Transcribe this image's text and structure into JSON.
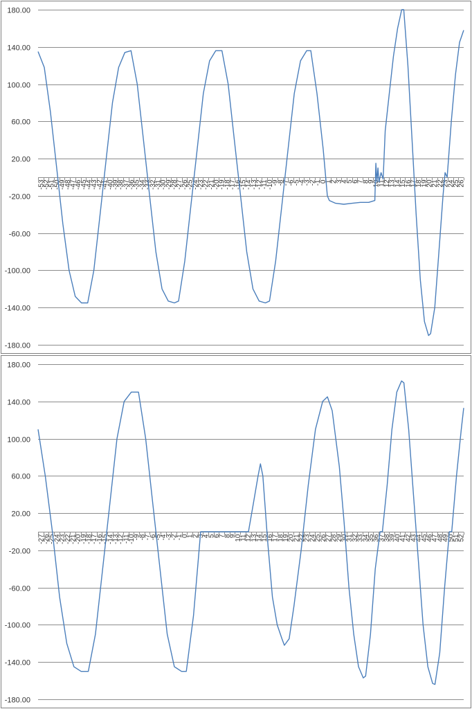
{
  "colors": {
    "series": "#4a7ebb",
    "grid": "#8c8c8c",
    "background": "#ffffff"
  },
  "chart_data": [
    {
      "type": "line",
      "title": "",
      "xlabel": "",
      "ylabel": "",
      "ylim": [
        -180,
        180
      ],
      "yticks": [
        "180.00",
        "140.00",
        "100.00",
        "60.00",
        "20.00",
        "-20.00",
        "-60.00",
        "-100.00",
        "-140.00",
        "-180.00"
      ],
      "grid": true,
      "legend": "none",
      "x_tick_labels": [
        "-53",
        "-52",
        "-51",
        "-50",
        "-49",
        "-48",
        "-47",
        "-46",
        "-45",
        "-44",
        "-43",
        "-42",
        "-41",
        "-40",
        "-39",
        "-38",
        "-37",
        "-36",
        "-35",
        "-34",
        "-33",
        "-32",
        "-31",
        "-30",
        "-29",
        "-28",
        "-27",
        "-26",
        "-25",
        "-24",
        "-23",
        "-22",
        "-21",
        "-20",
        "-19",
        "-18",
        "-17",
        "-16",
        "-15",
        "-14",
        "-13",
        "-12",
        "-11",
        "-10",
        "-9",
        "-8",
        "-7",
        "-6",
        "-5",
        "-4",
        "-3",
        "-2",
        "-1",
        "0",
        "1",
        "2",
        "3",
        "4",
        "5",
        "6",
        "7",
        "8",
        "9",
        "10",
        "11",
        "12",
        "13",
        "14",
        "15",
        "16",
        "17",
        "18",
        "19",
        "20",
        "21",
        "22",
        "23",
        "24",
        "25",
        "26"
      ],
      "series": [
        {
          "values": [
            [
              0,
              135
            ],
            [
              3,
              118
            ],
            [
              6,
              70
            ],
            [
              9,
              10
            ],
            [
              12,
              -50
            ],
            [
              15,
              -100
            ],
            [
              18,
              -128
            ],
            [
              21,
              -135
            ],
            [
              24,
              -135
            ],
            [
              27,
              -100
            ],
            [
              30,
              -40
            ],
            [
              33,
              20
            ],
            [
              36,
              80
            ],
            [
              39,
              118
            ],
            [
              42,
              134
            ],
            [
              45,
              136
            ],
            [
              48,
              100
            ],
            [
              51,
              40
            ],
            [
              54,
              -20
            ],
            [
              57,
              -80
            ],
            [
              60,
              -120
            ],
            [
              63,
              -133
            ],
            [
              66,
              -135
            ],
            [
              68,
              -133
            ],
            [
              71,
              -90
            ],
            [
              74,
              -30
            ],
            [
              77,
              30
            ],
            [
              80,
              90
            ],
            [
              83,
              125
            ],
            [
              86,
              136
            ],
            [
              89,
              136
            ],
            [
              92,
              100
            ],
            [
              95,
              40
            ],
            [
              98,
              -20
            ],
            [
              101,
              -80
            ],
            [
              104,
              -120
            ],
            [
              107,
              -133
            ],
            [
              110,
              -135
            ],
            [
              112,
              -133
            ],
            [
              115,
              -90
            ],
            [
              118,
              -30
            ],
            [
              121,
              30
            ],
            [
              124,
              90
            ],
            [
              127,
              125
            ],
            [
              130,
              136
            ],
            [
              132,
              136
            ],
            [
              135,
              90
            ],
            [
              138,
              30
            ],
            [
              140,
              -20
            ],
            [
              141,
              -25
            ],
            [
              144,
              -28
            ],
            [
              148,
              -29
            ],
            [
              152,
              -28
            ],
            [
              156,
              -27
            ],
            [
              160,
              -27
            ],
            [
              163,
              -25
            ],
            [
              163.5,
              15
            ],
            [
              164,
              -5
            ],
            [
              164.5,
              10
            ],
            [
              165,
              -5
            ],
            [
              166,
              5
            ],
            [
              167,
              -2
            ],
            [
              168,
              50
            ],
            [
              170,
              90
            ],
            [
              172,
              130
            ],
            [
              174,
              160
            ],
            [
              176,
              180
            ],
            [
              177,
              180
            ],
            [
              179,
              120
            ],
            [
              181,
              40
            ],
            [
              183,
              -40
            ],
            [
              185,
              -110
            ],
            [
              187,
              -155
            ],
            [
              189,
              -170
            ],
            [
              190,
              -168
            ],
            [
              192,
              -140
            ],
            [
              194,
              -80
            ],
            [
              196,
              -20
            ],
            [
              197,
              5
            ],
            [
              198,
              0
            ],
            [
              200,
              60
            ],
            [
              202,
              110
            ],
            [
              204,
              145
            ],
            [
              206,
              158
            ]
          ]
        }
      ]
    },
    {
      "type": "line",
      "title": "",
      "xlabel": "",
      "ylabel": "",
      "ylim": [
        -180,
        180
      ],
      "yticks": [
        "180.00",
        "140.00",
        "100.00",
        "60.00",
        "20.00",
        "-20.00",
        "-60.00",
        "-100.00",
        "-140.00",
        "-180.00"
      ],
      "grid": true,
      "legend": "none",
      "x_tick_labels": [
        "-27",
        "-26",
        "-25",
        "-24",
        "-23",
        "-22",
        "-21",
        "-20",
        "-19",
        "-18",
        "-17",
        "-16",
        "-15",
        "-14",
        "-13",
        "-12",
        "-11",
        "-10",
        "-9",
        "-8",
        "-7",
        "-6",
        "-5",
        "-4",
        "-3",
        "-2",
        "-1",
        "0",
        "1",
        "2",
        "3",
        "4",
        "5",
        "6",
        "7",
        "8",
        "9",
        "10",
        "11",
        "12",
        "13",
        "14",
        "15",
        "16",
        "17",
        "18",
        "19",
        "20",
        "21",
        "22",
        "23",
        "24",
        "25",
        "26",
        "27",
        "28",
        "29",
        "30",
        "31",
        "32",
        "33",
        "34",
        "35",
        "36",
        "37",
        "38",
        "39",
        "40",
        "41",
        "42",
        "43",
        "44",
        "45",
        "46",
        "47",
        "48",
        "49",
        "50",
        "51",
        "52"
      ],
      "series": [
        {
          "values": [
            [
              0,
              110
            ],
            [
              3,
              60
            ],
            [
              6,
              0
            ],
            [
              9,
              -70
            ],
            [
              12,
              -120
            ],
            [
              15,
              -145
            ],
            [
              18,
              -150
            ],
            [
              21,
              -150
            ],
            [
              24,
              -110
            ],
            [
              27,
              -40
            ],
            [
              30,
              30
            ],
            [
              33,
              100
            ],
            [
              36,
              140
            ],
            [
              39,
              150
            ],
            [
              42,
              150
            ],
            [
              45,
              100
            ],
            [
              48,
              30
            ],
            [
              51,
              -40
            ],
            [
              54,
              -110
            ],
            [
              57,
              -145
            ],
            [
              60,
              -150
            ],
            [
              62,
              -150
            ],
            [
              65,
              -90
            ],
            [
              67,
              -30
            ],
            [
              68,
              0
            ],
            [
              70,
              0
            ],
            [
              75,
              0
            ],
            [
              80,
              0
            ],
            [
              85,
              0
            ],
            [
              88,
              0
            ],
            [
              90,
              30
            ],
            [
              92,
              60
            ],
            [
              93,
              73
            ],
            [
              94,
              60
            ],
            [
              96,
              -10
            ],
            [
              98,
              -70
            ],
            [
              100,
              -100
            ],
            [
              102,
              -115
            ],
            [
              103,
              -122
            ],
            [
              105,
              -115
            ],
            [
              107,
              -80
            ],
            [
              110,
              -20
            ],
            [
              113,
              50
            ],
            [
              116,
              110
            ],
            [
              119,
              140
            ],
            [
              121,
              145
            ],
            [
              123,
              130
            ],
            [
              126,
              70
            ],
            [
              128,
              10
            ],
            [
              130,
              -60
            ],
            [
              132,
              -110
            ],
            [
              134,
              -145
            ],
            [
              136,
              -157
            ],
            [
              137,
              -155
            ],
            [
              139,
              -110
            ],
            [
              141,
              -40
            ],
            [
              143,
              0
            ],
            [
              144,
              0
            ],
            [
              146,
              50
            ],
            [
              148,
              110
            ],
            [
              150,
              150
            ],
            [
              152,
              162
            ],
            [
              153,
              160
            ],
            [
              155,
              110
            ],
            [
              157,
              40
            ],
            [
              159,
              -30
            ],
            [
              161,
              -100
            ],
            [
              163,
              -145
            ],
            [
              165,
              -163
            ],
            [
              166,
              -164
            ],
            [
              168,
              -130
            ],
            [
              170,
              -60
            ],
            [
              172,
              0
            ],
            [
              173,
              0
            ],
            [
              175,
              60
            ],
            [
              177,
              110
            ],
            [
              178,
              133
            ]
          ]
        }
      ]
    }
  ]
}
